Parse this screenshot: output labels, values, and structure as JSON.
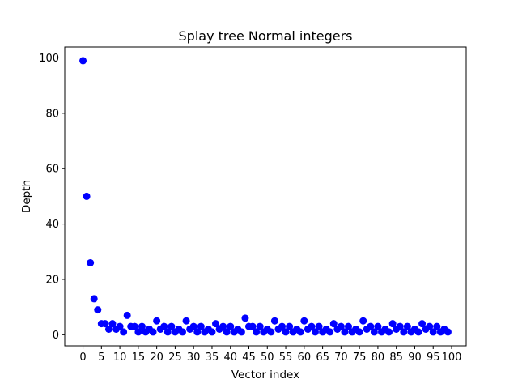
{
  "chart_data": {
    "type": "scatter",
    "title": "Splay tree Normal integers",
    "xlabel": "Vector index",
    "ylabel": "Depth",
    "xlim": [
      -4.95,
      103.95
    ],
    "ylim": [
      -4,
      103.95
    ],
    "xticks": [
      0,
      5,
      10,
      15,
      20,
      25,
      30,
      35,
      40,
      45,
      50,
      55,
      60,
      65,
      70,
      75,
      80,
      85,
      90,
      95,
      100
    ],
    "yticks": [
      0,
      20,
      40,
      60,
      80,
      100
    ],
    "grid": false,
    "legend": "none",
    "marker_color": "#0000ff",
    "series": [
      {
        "x": [
          0,
          1,
          2,
          3,
          4,
          5,
          6,
          7,
          8,
          9,
          10,
          11,
          12,
          13,
          14,
          15,
          16,
          17,
          18,
          19,
          20,
          21,
          22,
          23,
          24,
          25,
          26,
          27,
          28,
          29,
          30,
          31,
          32,
          33,
          34,
          35,
          36,
          37,
          38,
          39,
          40,
          41,
          42,
          43,
          44,
          45,
          46,
          47,
          48,
          49,
          50,
          51,
          52,
          53,
          54,
          55,
          56,
          57,
          58,
          59,
          60,
          61,
          62,
          63,
          64,
          65,
          66,
          67,
          68,
          69,
          70,
          71,
          72,
          73,
          74,
          75,
          76,
          77,
          78,
          79,
          80,
          81,
          82,
          83,
          84,
          85,
          86,
          87,
          88,
          89,
          90,
          91,
          92,
          93,
          94,
          95,
          96,
          97,
          98,
          99
        ],
        "y": [
          99,
          50,
          26,
          13,
          9,
          4,
          4,
          2,
          4,
          2,
          3,
          1,
          7,
          3,
          3,
          1,
          3,
          1,
          2,
          1,
          5,
          2,
          3,
          1,
          3,
          1,
          2,
          1,
          5,
          2,
          3,
          1,
          3,
          1,
          2,
          1,
          4,
          2,
          3,
          1,
          3,
          1,
          2,
          1,
          6,
          3,
          3,
          1,
          3,
          1,
          2,
          1,
          5,
          2,
          3,
          1,
          3,
          1,
          2,
          1,
          5,
          2,
          3,
          1,
          3,
          1,
          2,
          1,
          4,
          2,
          3,
          1,
          3,
          1,
          2,
          1,
          5,
          2,
          3,
          1,
          3,
          1,
          2,
          1,
          4,
          2,
          3,
          1,
          3,
          1,
          2,
          1,
          4,
          2,
          3,
          1,
          3,
          1,
          2,
          1
        ]
      }
    ]
  }
}
